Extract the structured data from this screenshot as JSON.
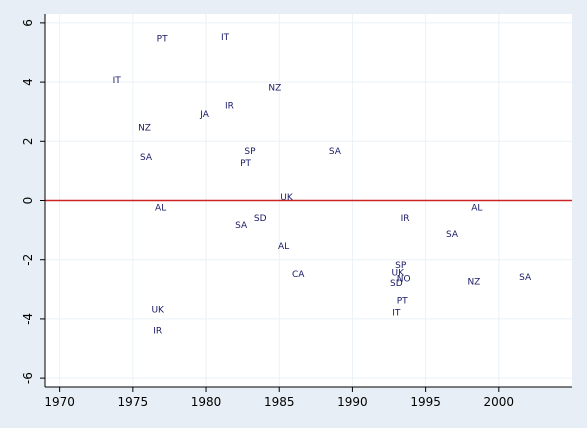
{
  "chart_data": {
    "type": "scatter",
    "title": "",
    "xlabel": "",
    "ylabel": "",
    "xlim": [
      1969,
      2005
    ],
    "ylim": [
      -6.3,
      6.3
    ],
    "x_ticks": [
      1970,
      1975,
      1980,
      1985,
      1990,
      1995,
      2000
    ],
    "y_ticks": [
      -6,
      -4,
      -2,
      0,
      2,
      4,
      6
    ],
    "grid": true,
    "reference_line": {
      "y": 0,
      "color": "#cc2222"
    },
    "colors": {
      "points": "#1a1a66",
      "axis": "#000000",
      "grid": "#eaf1f6"
    },
    "points": [
      {
        "label": "IT",
        "x": 1973.9,
        "y": 4.05
      },
      {
        "label": "PT",
        "x": 1977.0,
        "y": 5.45
      },
      {
        "label": "IT",
        "x": 1981.3,
        "y": 5.5
      },
      {
        "label": "NZ",
        "x": 1984.7,
        "y": 3.8
      },
      {
        "label": "IR",
        "x": 1981.6,
        "y": 3.2
      },
      {
        "label": "JA",
        "x": 1979.9,
        "y": 2.9
      },
      {
        "label": "NZ",
        "x": 1975.8,
        "y": 2.45
      },
      {
        "label": "SA",
        "x": 1975.9,
        "y": 1.45
      },
      {
        "label": "SP",
        "x": 1983.0,
        "y": 1.65
      },
      {
        "label": "PT",
        "x": 1982.7,
        "y": 1.25
      },
      {
        "label": "SA",
        "x": 1988.8,
        "y": 1.65
      },
      {
        "label": "UK",
        "x": 1985.5,
        "y": 0.1
      },
      {
        "label": "AL",
        "x": 1976.9,
        "y": -0.25
      },
      {
        "label": "SD",
        "x": 1983.7,
        "y": -0.6
      },
      {
        "label": "SA",
        "x": 1982.4,
        "y": -0.85
      },
      {
        "label": "AL",
        "x": 1985.3,
        "y": -1.55
      },
      {
        "label": "IR",
        "x": 1993.6,
        "y": -0.6
      },
      {
        "label": "AL",
        "x": 1998.5,
        "y": -0.25
      },
      {
        "label": "SA",
        "x": 1996.8,
        "y": -1.15
      },
      {
        "label": "CA",
        "x": 1986.3,
        "y": -2.5
      },
      {
        "label": "SP",
        "x": 1993.3,
        "y": -2.2
      },
      {
        "label": "UK",
        "x": 1993.1,
        "y": -2.45
      },
      {
        "label": "NO",
        "x": 1993.5,
        "y": -2.65
      },
      {
        "label": "SD",
        "x": 1993.0,
        "y": -2.8
      },
      {
        "label": "NZ",
        "x": 1998.3,
        "y": -2.75
      },
      {
        "label": "SA",
        "x": 2001.8,
        "y": -2.6
      },
      {
        "label": "PT",
        "x": 1993.4,
        "y": -3.4
      },
      {
        "label": "IT",
        "x": 1993.0,
        "y": -3.8
      },
      {
        "label": "UK",
        "x": 1976.7,
        "y": -3.7
      },
      {
        "label": "IR",
        "x": 1976.7,
        "y": -4.4
      }
    ]
  }
}
